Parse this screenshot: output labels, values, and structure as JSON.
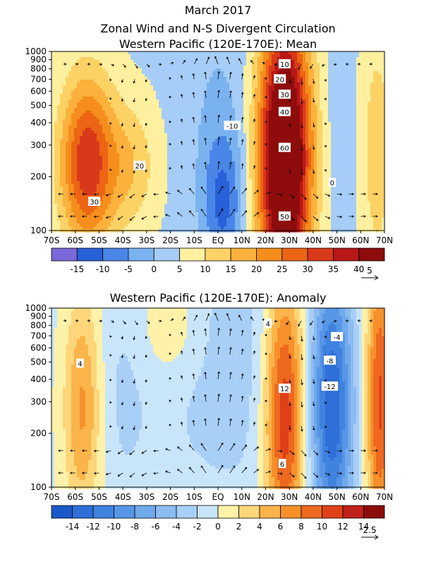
{
  "title_line1": "March 2017",
  "title_line2": "Zonal Wind and N-S Divergent Circulation",
  "chart_data": [
    {
      "type": "heatmap",
      "title": "Western Pacific (120E-170E): Mean",
      "x_ticks": [
        "70S",
        "60S",
        "50S",
        "40S",
        "30S",
        "20S",
        "10S",
        "EQ",
        "10N",
        "20N",
        "30N",
        "40N",
        "50N",
        "60N",
        "70N"
      ],
      "x_range": [
        -70,
        70
      ],
      "y_ticks": [
        "100",
        "200",
        "300",
        "400",
        "500",
        "600",
        "700",
        "800",
        "900",
        "1000"
      ],
      "y_range_hPa": [
        1000,
        100
      ],
      "y_scale": "log",
      "colorbar_ticks": [
        "-15",
        "-10",
        "-5",
        "0",
        "5",
        "10",
        "15",
        "20",
        "25",
        "30",
        "35",
        "40"
      ],
      "colorbar_colors": [
        "#7b68d8",
        "#2860d8",
        "#4a86e8",
        "#7ab2f0",
        "#a6cdf7",
        "#fff0a0",
        "#fcd265",
        "#fbb13c",
        "#f58e1c",
        "#ec6414",
        "#d8391a",
        "#b81818",
        "#8e0c0c"
      ],
      "vector_ref_label": "5",
      "contour_labels": [
        {
          "text": "30",
          "lat": -52,
          "p": 145
        },
        {
          "text": "20",
          "lat": -33,
          "p": 230
        },
        {
          "text": "-10",
          "lat": 6,
          "p": 385
        },
        {
          "text": "50",
          "lat": 28,
          "p": 120
        },
        {
          "text": "60",
          "lat": 28,
          "p": 290
        },
        {
          "text": "40",
          "lat": 28,
          "p": 460
        },
        {
          "text": "30",
          "lat": 28,
          "p": 575
        },
        {
          "text": "20",
          "lat": 26,
          "p": 700
        },
        {
          "text": "10",
          "lat": 28,
          "p": 850
        },
        {
          "text": "0",
          "lat": 48,
          "p": 185
        }
      ],
      "jets": [
        {
          "lat": -55,
          "p": 240,
          "peak": 30,
          "lat_width": 8,
          "logp_width": 0.33
        },
        {
          "lat": -37,
          "p": 230,
          "peak": 10,
          "lat_width": 8,
          "logp_width": 0.25
        },
        {
          "lat": 28,
          "p": 250,
          "peak": 57,
          "lat_width": 7.5,
          "logp_width": 0.55
        },
        {
          "lat": 2,
          "p": 140,
          "peak": -14,
          "lat_width": 6,
          "logp_width": 0.28
        },
        {
          "lat": 0,
          "p": 500,
          "peak": -4,
          "lat_width": 10,
          "logp_width": 0.5
        },
        {
          "lat": 52,
          "p": 300,
          "peak": -3,
          "lat_width": 4,
          "logp_width": 0.4
        },
        {
          "lat": 67,
          "p": 280,
          "peak": 9,
          "lat_width": 5,
          "logp_width": 0.5
        }
      ],
      "background": 4
    },
    {
      "type": "heatmap",
      "title": "Western Pacific (120E-170E): Anomaly",
      "x_ticks": [
        "70S",
        "60S",
        "50S",
        "40S",
        "30S",
        "20S",
        "10S",
        "EQ",
        "10N",
        "20N",
        "30N",
        "40N",
        "50N",
        "60N",
        "70N"
      ],
      "x_range": [
        -70,
        70
      ],
      "y_ticks": [
        "100",
        "200",
        "300",
        "400",
        "500",
        "600",
        "700",
        "800",
        "900",
        "1000"
      ],
      "y_range_hPa": [
        1000,
        100
      ],
      "y_scale": "log",
      "colorbar_ticks": [
        "-14",
        "-12",
        "-10",
        "-8",
        "-6",
        "-4",
        "-2",
        "0",
        "2",
        "4",
        "6",
        "8",
        "10",
        "12",
        "14"
      ],
      "colorbar_colors": [
        "#1858c8",
        "#2e6fd8",
        "#3f82e0",
        "#5796e6",
        "#70a9ec",
        "#8bbcf1",
        "#a8cff6",
        "#c9e5fa",
        "#fff2a8",
        "#fdd67a",
        "#fbb44a",
        "#f6902a",
        "#ee6820",
        "#df4018",
        "#c0201a",
        "#8e0c0c"
      ],
      "vector_ref_label": "2.5",
      "contour_labels": [
        {
          "text": "6",
          "lat": 27,
          "p": 135
        },
        {
          "text": "12",
          "lat": 28,
          "p": 355
        },
        {
          "text": "4",
          "lat": 21,
          "p": 820
        },
        {
          "text": "-12",
          "lat": 47,
          "p": 365
        },
        {
          "text": "-8",
          "lat": 47,
          "p": 510
        },
        {
          "text": "-4",
          "lat": 50,
          "p": 690
        },
        {
          "text": "4",
          "lat": -58,
          "p": 490
        }
      ],
      "jets": [
        {
          "lat": -57,
          "p": 280,
          "peak": 7,
          "lat_width": 5.5,
          "logp_width": 0.45
        },
        {
          "lat": 28,
          "p": 260,
          "peak": 13,
          "lat_width": 6,
          "logp_width": 0.55
        },
        {
          "lat": 48,
          "p": 280,
          "peak": -13,
          "lat_width": 6,
          "logp_width": 0.55
        },
        {
          "lat": 68,
          "p": 300,
          "peak": 11,
          "lat_width": 4,
          "logp_width": 0.6
        },
        {
          "lat": -20,
          "p": 780,
          "peak": 3,
          "lat_width": 10,
          "logp_width": 0.22
        },
        {
          "lat": 5,
          "p": 500,
          "peak": -2.5,
          "lat_width": 25,
          "logp_width": 0.6
        },
        {
          "lat": -40,
          "p": 350,
          "peak": -1.5,
          "lat_width": 8,
          "logp_width": 0.5
        }
      ],
      "background": -0.5
    }
  ]
}
